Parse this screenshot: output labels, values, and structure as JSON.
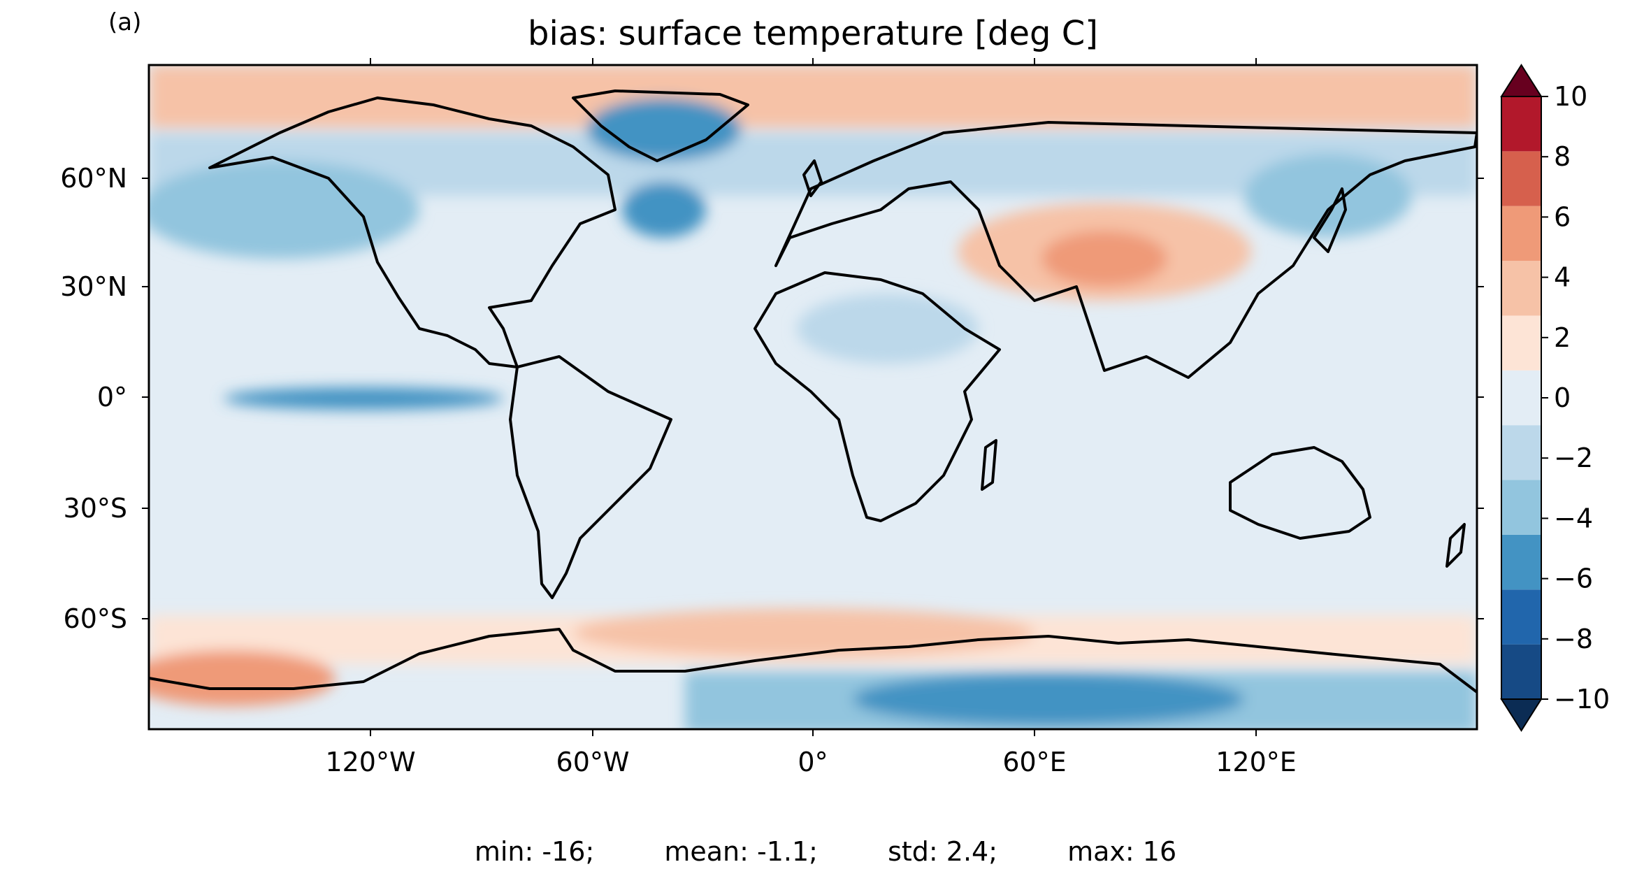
{
  "panel_label": "(a)",
  "title": "bias: surface temperature [deg C]",
  "stats": {
    "min": "min: -16;",
    "mean": "mean: -1.1;",
    "std": "std: 2.4;",
    "max": "max: 16"
  },
  "map": {
    "projection": "PlateCarree",
    "lon_ticks": [
      "120°W",
      "60°W",
      "0°",
      "60°E",
      "120°E"
    ],
    "lat_ticks": [
      "60°N",
      "30°N",
      "0°",
      "30°S",
      "60°S"
    ],
    "coastlines": true,
    "variable": "surface temperature bias"
  },
  "colorbar": {
    "levels": [
      -10,
      -8,
      -6,
      -4,
      -2,
      0,
      2,
      4,
      6,
      8,
      10
    ],
    "tick_labels": [
      "10",
      "8",
      "6",
      "4",
      "2",
      "0",
      "−2",
      "−4",
      "−6",
      "−8",
      "−10"
    ],
    "colors": [
      "#164a85",
      "#2166ac",
      "#4393c3",
      "#92c5de",
      "#bcd8ea",
      "#e3edf5",
      "#fde4d6",
      "#f6c2a7",
      "#ef9a78",
      "#d6604d",
      "#b2182b"
    ],
    "extend_low_color": "#0b2c54",
    "extend_high_color": "#67001f",
    "extend": "both"
  }
}
